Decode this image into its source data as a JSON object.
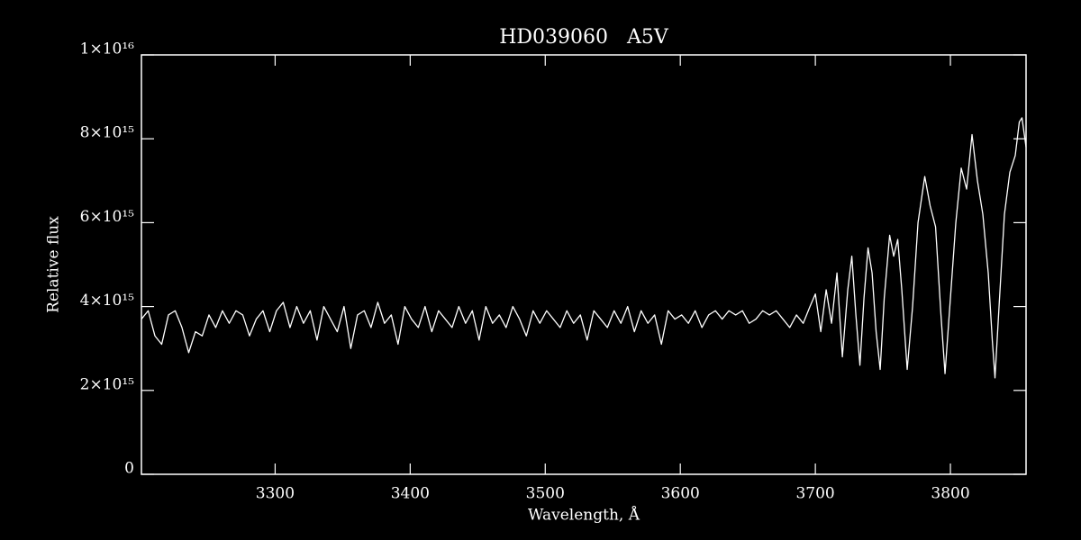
{
  "chart_data": {
    "type": "line",
    "title": "HD039060   A5V",
    "x_label": "Wavelength, Å",
    "y_label": "Relative flux",
    "color": "#ffffff",
    "xlim": [
      3201,
      3856
    ],
    "ylim": [
      0,
      1e+16
    ],
    "xticks": [
      3300,
      3400,
      3500,
      3600,
      3700,
      3800
    ],
    "yticks": [
      0,
      {
        "value": 2000000000000000.0,
        "label": "2×10¹⁵"
      },
      {
        "value": 4000000000000000.0,
        "label": "4×10¹⁵"
      },
      {
        "value": 6000000000000000.0,
        "label": "6×10¹⁵"
      },
      {
        "value": 8000000000000000.0,
        "label": "8×10¹⁵"
      },
      {
        "value": 1e+16,
        "label": "1×10¹⁶"
      }
    ],
    "x": [
      3201,
      3206,
      3211,
      3216,
      3221,
      3226,
      3231,
      3236,
      3241,
      3246,
      3251,
      3256,
      3261,
      3266,
      3271,
      3276,
      3281,
      3286,
      3291,
      3296,
      3301,
      3306,
      3311,
      3316,
      3321,
      3326,
      3331,
      3336,
      3341,
      3346,
      3351,
      3356,
      3361,
      3366,
      3371,
      3376,
      3381,
      3386,
      3391,
      3396,
      3401,
      3406,
      3411,
      3416,
      3421,
      3426,
      3431,
      3436,
      3441,
      3446,
      3451,
      3456,
      3461,
      3466,
      3471,
      3476,
      3481,
      3486,
      3491,
      3496,
      3501,
      3506,
      3511,
      3516,
      3521,
      3526,
      3531,
      3536,
      3541,
      3546,
      3551,
      3556,
      3561,
      3566,
      3571,
      3576,
      3581,
      3586,
      3591,
      3596,
      3601,
      3606,
      3611,
      3616,
      3621,
      3626,
      3631,
      3636,
      3641,
      3646,
      3651,
      3656,
      3661,
      3666,
      3671,
      3676,
      3681,
      3686,
      3691,
      3696,
      3700,
      3704,
      3708,
      3712,
      3716,
      3720,
      3724,
      3727,
      3730,
      3733,
      3736,
      3739,
      3742,
      3745,
      3748,
      3751,
      3755,
      3758,
      3761,
      3764,
      3768,
      3772,
      3776,
      3781,
      3785,
      3789,
      3793,
      3796,
      3800,
      3804,
      3808,
      3812,
      3816,
      3820,
      3824,
      3828,
      3831,
      3833,
      3836,
      3840,
      3844,
      3848,
      3851,
      3853,
      3856
    ],
    "values": [
      3700000000000000.0,
      3900000000000000.0,
      3300000000000000.0,
      3100000000000000.0,
      3800000000000000.0,
      3900000000000000.0,
      3500000000000000.0,
      2900000000000000.0,
      3400000000000000.0,
      3300000000000000.0,
      3800000000000000.0,
      3500000000000000.0,
      3900000000000000.0,
      3600000000000000.0,
      3900000000000000.0,
      3800000000000000.0,
      3300000000000000.0,
      3700000000000000.0,
      3900000000000000.0,
      3400000000000000.0,
      3900000000000000.0,
      4100000000000000.0,
      3500000000000000.0,
      4000000000000000.0,
      3600000000000000.0,
      3900000000000000.0,
      3200000000000000.0,
      4000000000000000.0,
      3700000000000000.0,
      3400000000000000.0,
      4000000000000000.0,
      3000000000000000.0,
      3800000000000000.0,
      3900000000000000.0,
      3500000000000000.0,
      4100000000000000.0,
      3600000000000000.0,
      3800000000000000.0,
      3100000000000000.0,
      4000000000000000.0,
      3700000000000000.0,
      3500000000000000.0,
      4000000000000000.0,
      3400000000000000.0,
      3900000000000000.0,
      3700000000000000.0,
      3500000000000000.0,
      4000000000000000.0,
      3600000000000000.0,
      3900000000000000.0,
      3200000000000000.0,
      4000000000000000.0,
      3600000000000000.0,
      3800000000000000.0,
      3500000000000000.0,
      4000000000000000.0,
      3700000000000000.0,
      3300000000000000.0,
      3900000000000000.0,
      3600000000000000.0,
      3900000000000000.0,
      3700000000000000.0,
      3500000000000000.0,
      3900000000000000.0,
      3600000000000000.0,
      3800000000000000.0,
      3200000000000000.0,
      3900000000000000.0,
      3700000000000000.0,
      3500000000000000.0,
      3900000000000000.0,
      3600000000000000.0,
      4000000000000000.0,
      3400000000000000.0,
      3900000000000000.0,
      3600000000000000.0,
      3800000000000000.0,
      3100000000000000.0,
      3900000000000000.0,
      3700000000000000.0,
      3800000000000000.0,
      3600000000000000.0,
      3900000000000000.0,
      3500000000000000.0,
      3800000000000000.0,
      3900000000000000.0,
      3700000000000000.0,
      3900000000000000.0,
      3800000000000000.0,
      3900000000000000.0,
      3600000000000000.0,
      3700000000000000.0,
      3900000000000000.0,
      3800000000000000.0,
      3900000000000000.0,
      3700000000000000.0,
      3500000000000000.0,
      3800000000000000.0,
      3600000000000000.0,
      4000000000000000.0,
      4300000000000000.0,
      3400000000000000.0,
      4400000000000000.0,
      3600000000000000.0,
      4800000000000000.0,
      2800000000000000.0,
      4400000000000000.0,
      5200000000000000.0,
      3800000000000000.0,
      2600000000000000.0,
      4200000000000000.0,
      5400000000000000.0,
      4800000000000000.0,
      3400000000000000.0,
      2500000000000000.0,
      4200000000000000.0,
      5700000000000000.0,
      5200000000000000.0,
      5600000000000000.0,
      4400000000000000.0,
      2500000000000000.0,
      4000000000000000.0,
      6000000000000000.0,
      7100000000000000.0,
      6400000000000000.0,
      5900000000000000.0,
      3800000000000000.0,
      2400000000000000.0,
      4200000000000000.0,
      6000000000000000.0,
      7300000000000000.0,
      6800000000000000.0,
      8100000000000000.0,
      7000000000000000.0,
      6200000000000000.0,
      4800000000000000.0,
      3200000000000000.0,
      2300000000000000.0,
      4000000000000000.0,
      6200000000000000.0,
      7200000000000000.0,
      7600000000000000.0,
      8400000000000000.0,
      8500000000000000.0,
      7800000000000000.0
    ]
  }
}
